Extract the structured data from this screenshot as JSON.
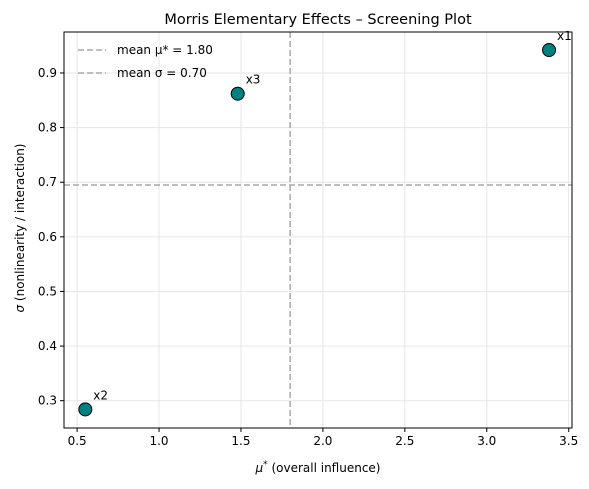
{
  "chart_data": {
    "type": "scatter",
    "title": "Morris Elementary Effects – Screening Plot",
    "xlabel_symbol": "μ",
    "xlabel_sup": "*",
    "xlabel_text": " (overall influence)",
    "ylabel_symbol": "σ",
    "ylabel_text": " (nonlinearity / interaction)",
    "xlim": [
      0.42,
      3.52
    ],
    "ylim": [
      0.25,
      0.975
    ],
    "xticks": [
      0.5,
      1.0,
      1.5,
      2.0,
      2.5,
      3.0,
      3.5
    ],
    "xtick_labels": [
      "0.5",
      "1.0",
      "1.5",
      "2.0",
      "2.5",
      "3.0",
      "3.5"
    ],
    "yticks": [
      0.3,
      0.4,
      0.5,
      0.6,
      0.7,
      0.8,
      0.9
    ],
    "ytick_labels": [
      "0.3",
      "0.4",
      "0.5",
      "0.6",
      "0.7",
      "0.8",
      "0.9"
    ],
    "grid": true,
    "legend_position": "top-left",
    "points": [
      {
        "label": "x1",
        "x": 3.38,
        "y": 0.942
      },
      {
        "label": "x2",
        "x": 0.55,
        "y": 0.284
      },
      {
        "label": "x3",
        "x": 1.48,
        "y": 0.862
      }
    ],
    "reference_lines": [
      {
        "orientation": "vertical",
        "value": 1.8,
        "legend": "mean μ* = 1.80"
      },
      {
        "orientation": "horizontal",
        "value": 0.695,
        "legend": "mean σ = 0.70"
      }
    ],
    "colors": {
      "point_fill": "#008080",
      "point_edge": "#000000",
      "reference_line": "#a8a8a8",
      "grid": "#e6e6e6"
    }
  }
}
